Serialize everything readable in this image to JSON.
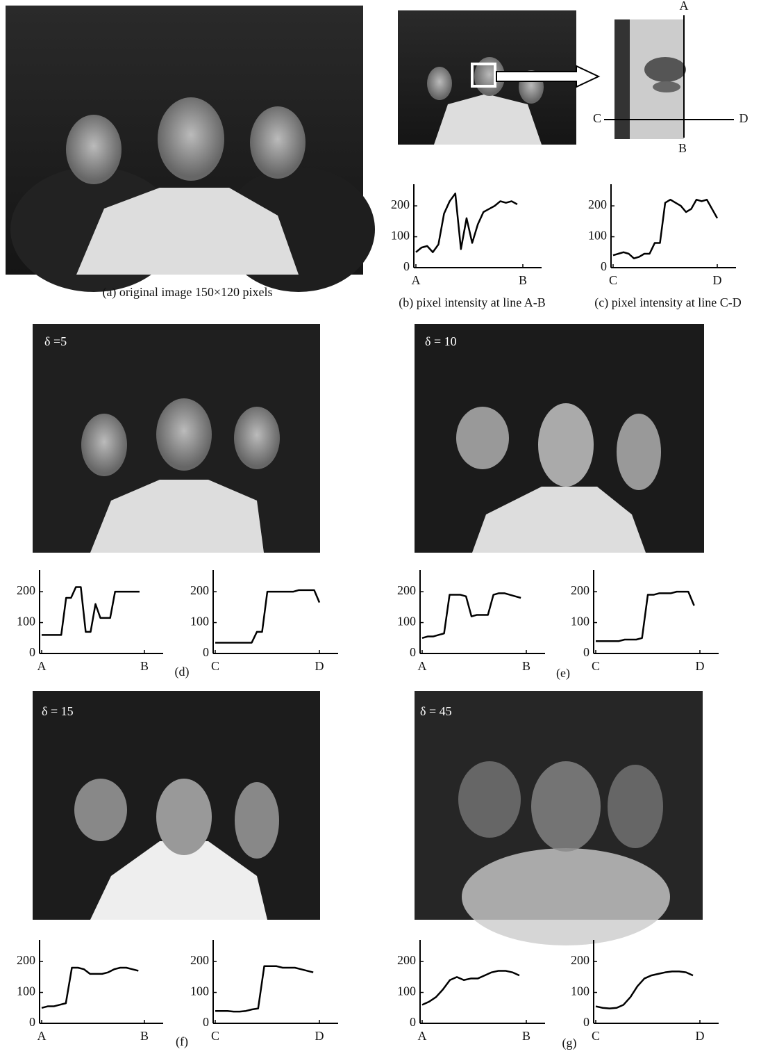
{
  "figure": {
    "original_caption": "(a) original image  150×120 pixels",
    "zoom_labels": [
      "A",
      "B",
      "C",
      "D"
    ],
    "panels": [
      {
        "delta": "δ =5",
        "label": "(d)"
      },
      {
        "delta": "δ = 10",
        "label": "(e)"
      },
      {
        "delta": "δ = 15",
        "label": "(f)"
      },
      {
        "delta": "δ = 45",
        "label": "(g)"
      }
    ]
  },
  "chart_data": [
    {
      "type": "line",
      "title": "(b) pixel intensity at line A-B",
      "color": "#000000",
      "values": [
        50,
        65,
        70,
        50,
        75,
        175,
        215,
        240,
        60,
        160,
        80,
        140,
        180,
        190,
        200,
        215,
        210,
        215,
        205
      ],
      "xlim": [
        0,
        19
      ],
      "xticks": [
        {
          "value": 0,
          "label": "A"
        },
        {
          "value": 19,
          "label": "B"
        }
      ],
      "ylim": [
        0,
        270
      ],
      "yticks": [
        0,
        100,
        200
      ]
    },
    {
      "type": "line",
      "title": "(c) pixel intensity at line C-D",
      "color": "#000000",
      "values": [
        40,
        45,
        50,
        45,
        30,
        35,
        45,
        45,
        80,
        80,
        210,
        220,
        210,
        200,
        180,
        190,
        220,
        215,
        220,
        190,
        160
      ],
      "xlim": [
        0,
        20
      ],
      "xticks": [
        {
          "value": 0,
          "label": "C"
        },
        {
          "value": 20,
          "label": "D"
        }
      ],
      "ylim": [
        0,
        270
      ],
      "yticks": [
        0,
        100,
        200
      ]
    },
    {
      "type": "line",
      "color": "#000000",
      "values": [
        60,
        60,
        60,
        60,
        60,
        180,
        180,
        215,
        215,
        70,
        70,
        160,
        115,
        115,
        115,
        200,
        200,
        200,
        200,
        200,
        200
      ],
      "xlim": [
        0,
        21
      ],
      "xticks": [
        {
          "value": 0,
          "label": "A"
        },
        {
          "value": 21,
          "label": "B"
        }
      ],
      "ylim": [
        0,
        270
      ],
      "yticks": [
        0,
        100,
        200
      ]
    },
    {
      "type": "line",
      "color": "#000000",
      "values": [
        35,
        35,
        35,
        35,
        35,
        35,
        35,
        35,
        70,
        70,
        200,
        200,
        200,
        200,
        200,
        200,
        205,
        205,
        205,
        205,
        165
      ],
      "xlim": [
        0,
        20
      ],
      "xticks": [
        {
          "value": 0,
          "label": "C"
        },
        {
          "value": 20,
          "label": "D"
        }
      ],
      "ylim": [
        0,
        270
      ],
      "yticks": [
        0,
        100,
        200
      ]
    },
    {
      "type": "line",
      "color": "#000000",
      "values": [
        50,
        55,
        55,
        60,
        65,
        190,
        190,
        190,
        185,
        120,
        125,
        125,
        125,
        190,
        195,
        195,
        190,
        185,
        180
      ],
      "xlim": [
        0,
        19
      ],
      "xticks": [
        {
          "value": 0,
          "label": "A"
        },
        {
          "value": 19,
          "label": "B"
        }
      ],
      "ylim": [
        0,
        270
      ],
      "yticks": [
        0,
        100,
        200
      ]
    },
    {
      "type": "line",
      "color": "#000000",
      "values": [
        40,
        40,
        40,
        40,
        40,
        45,
        45,
        45,
        50,
        190,
        190,
        195,
        195,
        195,
        200,
        200,
        200,
        155
      ],
      "xlim": [
        0,
        18
      ],
      "xticks": [
        {
          "value": 0,
          "label": "C"
        },
        {
          "value": 18,
          "label": "D"
        }
      ],
      "ylim": [
        0,
        270
      ],
      "yticks": [
        0,
        100,
        200
      ]
    },
    {
      "type": "line",
      "color": "#000000",
      "values": [
        50,
        55,
        55,
        60,
        65,
        180,
        180,
        175,
        160,
        160,
        160,
        165,
        175,
        180,
        180,
        175,
        170
      ],
      "xlim": [
        0,
        17
      ],
      "xticks": [
        {
          "value": 0,
          "label": "A"
        },
        {
          "value": 17,
          "label": "B"
        }
      ],
      "ylim": [
        0,
        270
      ],
      "yticks": [
        0,
        100,
        200
      ]
    },
    {
      "type": "line",
      "color": "#000000",
      "values": [
        40,
        40,
        40,
        38,
        38,
        40,
        45,
        48,
        185,
        185,
        185,
        180,
        180,
        180,
        175,
        170,
        165
      ],
      "xlim": [
        0,
        17
      ],
      "xticks": [
        {
          "value": 0,
          "label": "C"
        },
        {
          "value": 17,
          "label": "D"
        }
      ],
      "ylim": [
        0,
        270
      ],
      "yticks": [
        0,
        100,
        200
      ]
    },
    {
      "type": "line",
      "color": "#000000",
      "values": [
        60,
        70,
        85,
        110,
        140,
        150,
        140,
        145,
        145,
        155,
        165,
        170,
        170,
        165,
        155
      ],
      "xlim": [
        0,
        15
      ],
      "xticks": [
        {
          "value": 0,
          "label": "A"
        },
        {
          "value": 15,
          "label": "B"
        }
      ],
      "ylim": [
        0,
        270
      ],
      "yticks": [
        0,
        100,
        200
      ]
    },
    {
      "type": "line",
      "color": "#000000",
      "values": [
        55,
        50,
        48,
        50,
        60,
        85,
        120,
        145,
        155,
        160,
        165,
        168,
        168,
        165,
        155
      ],
      "xlim": [
        0,
        15
      ],
      "xticks": [
        {
          "value": 0,
          "label": "C"
        },
        {
          "value": 15,
          "label": "D"
        }
      ],
      "ylim": [
        0,
        270
      ],
      "yticks": [
        0,
        100,
        200
      ]
    }
  ]
}
